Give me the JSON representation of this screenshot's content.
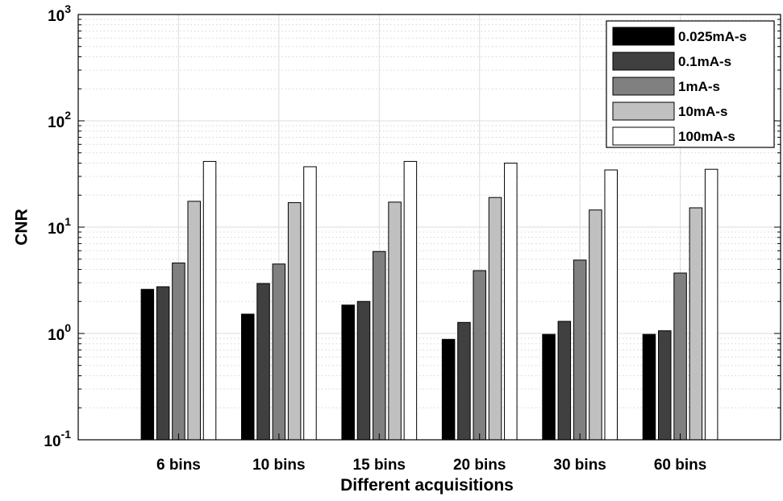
{
  "chart_data": {
    "type": "bar",
    "xlabel": "Different acquisitions",
    "ylabel": "CNR",
    "yscale": "log",
    "ylim": [
      0.1,
      1000
    ],
    "yticks": [
      {
        "base": "10",
        "exp": "-1"
      },
      {
        "base": "10",
        "exp": "0"
      },
      {
        "base": "10",
        "exp": "1"
      },
      {
        "base": "10",
        "exp": "2"
      },
      {
        "base": "10",
        "exp": "3"
      }
    ],
    "categories": [
      "6 bins",
      "10 bins",
      "15 bins",
      "20 bins",
      "30 bins",
      "60 bins"
    ],
    "series": [
      {
        "name": "0.025mA-s",
        "color": "#000000",
        "values": [
          2.6,
          1.52,
          1.85,
          0.88,
          0.98,
          0.98
        ]
      },
      {
        "name": "0.1mA-s",
        "color": "#404040",
        "values": [
          2.75,
          2.95,
          2.0,
          1.27,
          1.3,
          1.06
        ]
      },
      {
        "name": "1mA-s",
        "color": "#808080",
        "values": [
          4.6,
          4.5,
          5.9,
          3.9,
          4.9,
          3.7
        ]
      },
      {
        "name": "10mA-s",
        "color": "#c0c0c0",
        "values": [
          17.5,
          17.0,
          17.2,
          19.0,
          14.5,
          15.2
        ]
      },
      {
        "name": "100mA-s",
        "color": "#ffffff",
        "values": [
          41.5,
          37.0,
          41.5,
          40.0,
          34.5,
          35.0
        ]
      }
    ],
    "grid": true,
    "minor_grid": true,
    "legend_position": "top-right"
  }
}
